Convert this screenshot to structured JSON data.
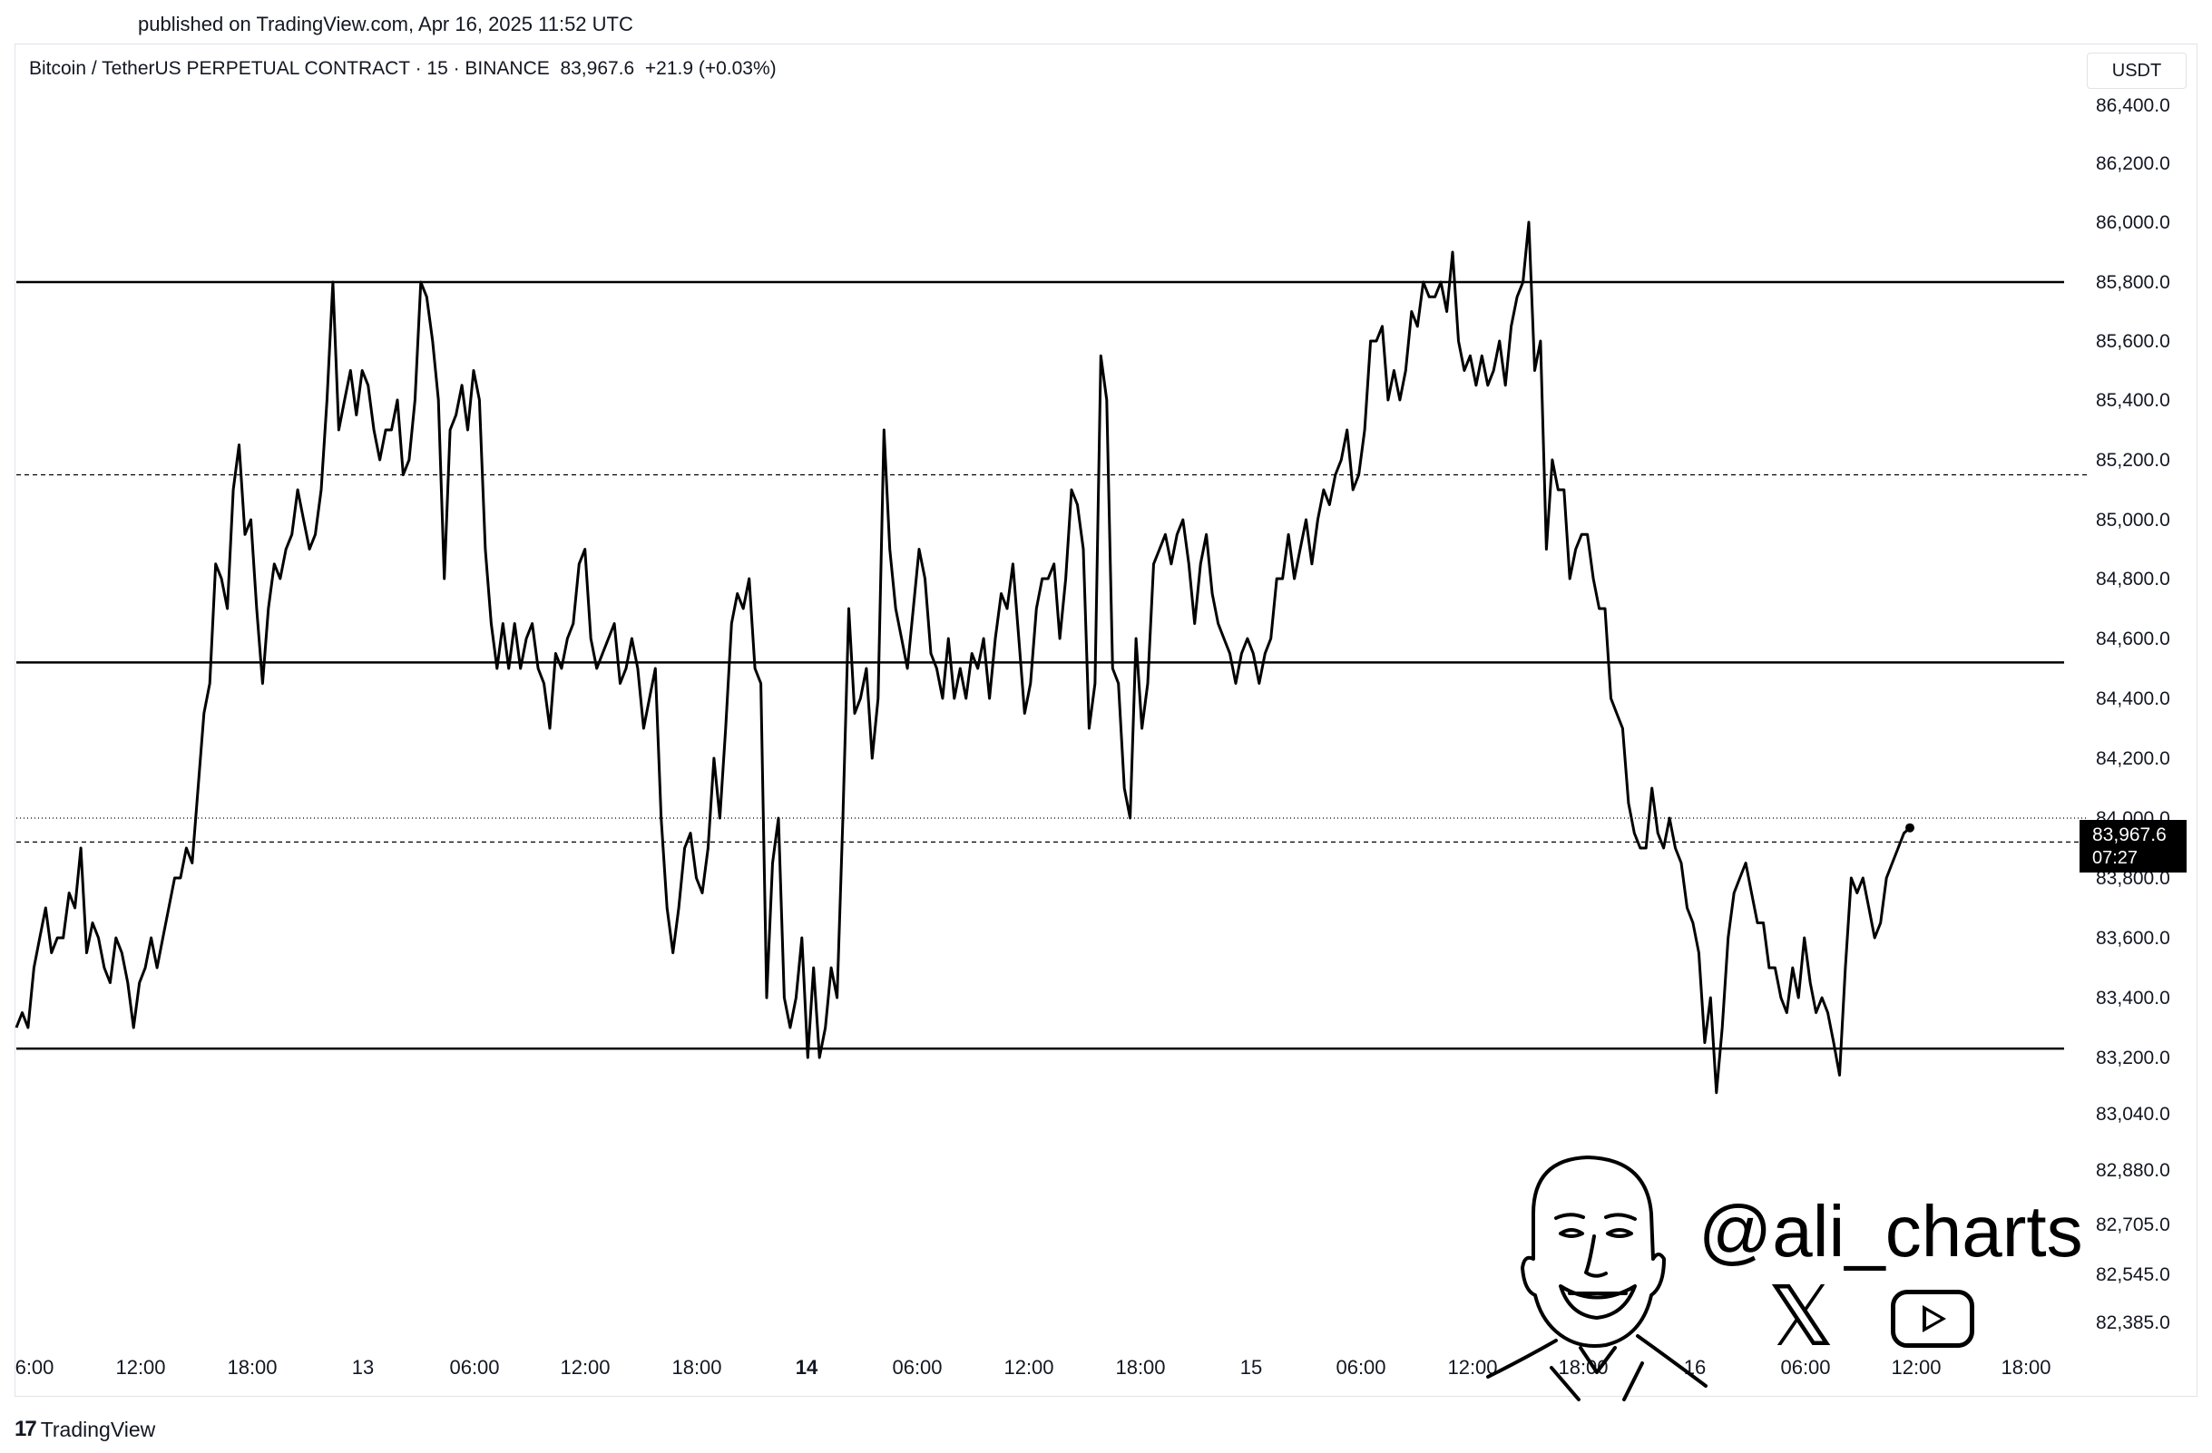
{
  "header": {
    "published": "published on TradingView.com, Apr 16, 2025 11:52 UTC",
    "symbol": "Bitcoin / TetherUS PERPETUAL CONTRACT · 15 · BINANCE",
    "last": "83,967.6",
    "change": "+21.9 (+0.03%)",
    "currency": "USDT"
  },
  "watermark": {
    "handle": "@ali_charts",
    "icons": [
      "avatar-illustration",
      "x-logo-icon",
      "youtube-icon"
    ]
  },
  "footer": {
    "brand": "TradingView",
    "logo_icon": "tradingview-logo-icon"
  },
  "colors": {
    "line": "#000000",
    "background": "#ffffff",
    "price_label_bg": "#000000"
  },
  "chart_data": {
    "type": "line",
    "series": [
      {
        "values": [
          83300,
          83350,
          83300,
          83500,
          83600,
          83700,
          83550,
          83600,
          83600,
          83750,
          83700,
          83900,
          83550,
          83650,
          83600,
          83500,
          83450,
          83600,
          83550,
          83450,
          83300,
          83450,
          83500,
          83600,
          83500,
          83600,
          83700,
          83800,
          83800,
          83900,
          83850,
          84100,
          84350,
          84450,
          84850,
          84800,
          84700,
          85100,
          85250,
          84950,
          85000,
          84700,
          84450,
          84700,
          84850,
          84800,
          84900,
          84950,
          85100,
          85000,
          84900,
          84950,
          85100,
          85400,
          85800,
          85300,
          85400,
          85500,
          85350,
          85500,
          85450,
          85300,
          85200,
          85300,
          85300,
          85400,
          85150,
          85200,
          85400,
          85800,
          85750,
          85600,
          85400,
          84800,
          85300,
          85350,
          85450,
          85300,
          85500,
          85400,
          84900,
          84650,
          84500,
          84650,
          84500,
          84650,
          84500,
          84600,
          84650,
          84500,
          84450,
          84300,
          84550,
          84500,
          84600,
          84650,
          84850,
          84900,
          84600,
          84500,
          84550,
          84600,
          84650,
          84450,
          84500,
          84600,
          84500,
          84300,
          84400,
          84500,
          84000,
          83700,
          83550,
          83700,
          83900,
          83950,
          83800,
          83750,
          83900,
          84200,
          84000,
          84300,
          84650,
          84750,
          84700,
          84800,
          84500,
          84450,
          83400,
          83850,
          84000,
          83400,
          83300,
          83400,
          83600,
          83200,
          83500,
          83200,
          83300,
          83500,
          83400,
          84000,
          84700,
          84350,
          84400,
          84500,
          84200,
          84400,
          85300,
          84900,
          84700,
          84600,
          84500,
          84700,
          84900,
          84800,
          84550,
          84500,
          84400,
          84600,
          84400,
          84500,
          84400,
          84550,
          84500,
          84600,
          84400,
          84600,
          84750,
          84700,
          84850,
          84600,
          84350,
          84450,
          84700,
          84800,
          84800,
          84850,
          84600,
          84800,
          85100,
          85050,
          84900,
          84300,
          84450,
          85550,
          85400,
          84500,
          84450,
          84100,
          84000,
          84600,
          84300,
          84450,
          84850,
          84900,
          84950,
          84850,
          84950,
          85000,
          84850,
          84650,
          84850,
          84950,
          84750,
          84650,
          84600,
          84550,
          84450,
          84550,
          84600,
          84550,
          84450,
          84550,
          84600,
          84800,
          84800,
          84950,
          84800,
          84900,
          85000,
          84850,
          85000,
          85100,
          85050,
          85150,
          85200,
          85300,
          85100,
          85150,
          85300,
          85600,
          85600,
          85650,
          85400,
          85500,
          85400,
          85500,
          85700,
          85650,
          85800,
          85750,
          85750,
          85800,
          85700,
          85900,
          85600,
          85500,
          85550,
          85450,
          85550,
          85450,
          85500,
          85600,
          85450,
          85650,
          85750,
          85800,
          86000,
          85500,
          85600,
          84900,
          85200,
          85100,
          85100,
          84800,
          84900,
          84950,
          84950,
          84800,
          84700,
          84700,
          84400,
          84350,
          84300,
          84050,
          83950,
          83900,
          83900,
          84100,
          83950,
          83900,
          84000,
          83900,
          83850,
          83700,
          83650,
          83550,
          83250,
          83400,
          83100,
          83300,
          83600,
          83750,
          83800,
          83850,
          83750,
          83650,
          83650,
          83500,
          83500,
          83400,
          83350,
          83500,
          83400,
          83600,
          83450,
          83350,
          83400,
          83350,
          83250,
          83150,
          83500,
          83800,
          83750,
          83800,
          83700,
          83600,
          83650,
          83800,
          83850,
          83900,
          83950,
          83967.6
        ]
      }
    ],
    "x_ticks": [
      "6:00",
      "12:00",
      "18:00",
      "13",
      "06:00",
      "12:00",
      "18:00",
      "14",
      "06:00",
      "12:00",
      "18:00",
      "15",
      "06:00",
      "12:00",
      "18:00",
      "16",
      "06:00",
      "12:00",
      "18:00"
    ],
    "y_ticks": [
      "86,400.0",
      "86,200.0",
      "86,000.0",
      "85,800.0",
      "85,600.0",
      "85,400.0",
      "85,200.0",
      "85,000.0",
      "84,800.0",
      "84,600.0",
      "84,400.0",
      "84,200.0",
      "84,000.0",
      "83,800.0",
      "83,600.0",
      "83,400.0",
      "83,200.0",
      "83,040.0",
      "82,880.0",
      "82,705.0",
      "82,545.0",
      "82,385.0"
    ],
    "y_tick_values": [
      86400,
      86200,
      86000,
      85800,
      85600,
      85400,
      85200,
      85000,
      84800,
      84600,
      84400,
      84200,
      84000,
      83800,
      83600,
      83400,
      83200,
      83040,
      82880,
      82705,
      82545,
      82385
    ],
    "horizontal_lines": [
      {
        "value": 85800,
        "style": "solid"
      },
      {
        "value": 85150,
        "style": "dashed"
      },
      {
        "value": 84520,
        "style": "solid"
      },
      {
        "value": 83230,
        "style": "solid"
      },
      {
        "value": 84000,
        "style": "dotted"
      },
      {
        "value": 83920,
        "style": "dashed"
      }
    ],
    "price_label": {
      "value": "83,967.6",
      "timer": "07:27"
    },
    "ylim": [
      82300,
      86450
    ],
    "grid": false
  }
}
